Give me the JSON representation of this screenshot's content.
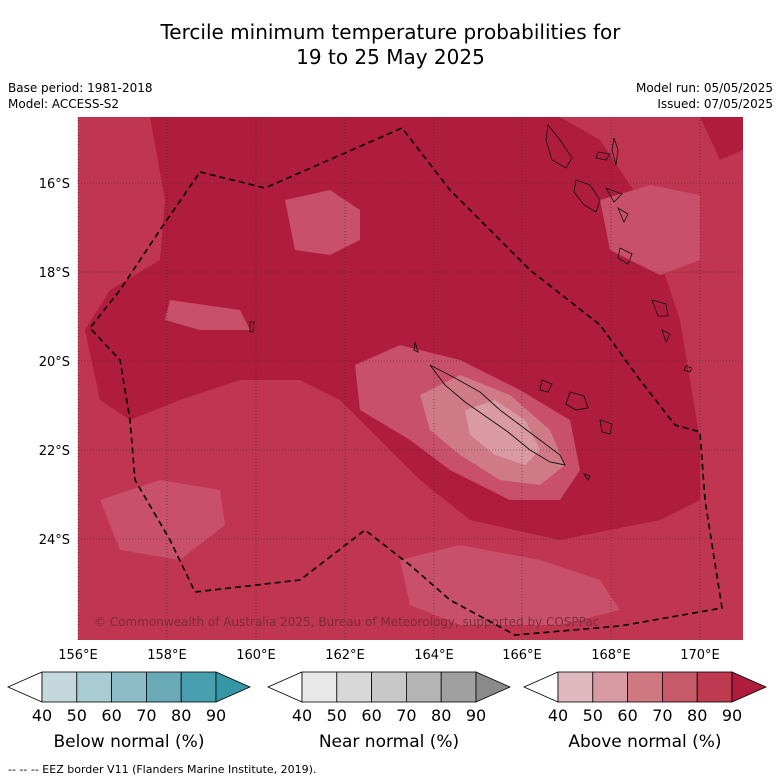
{
  "title": {
    "line1": "Tercile minimum temperature probabilities for",
    "line2": "19 to 25 May 2025"
  },
  "meta": {
    "base_period": "Base period: 1981-2018",
    "model": "Model: ACCESS-S2",
    "model_run": "Model run: 05/05/2025",
    "issued": "Issued: 07/05/2025"
  },
  "map": {
    "lat_labels": [
      "16°S",
      "18°S",
      "20°S",
      "22°S",
      "24°S"
    ],
    "lon_labels": [
      "156°E",
      "158°E",
      "160°E",
      "162°E",
      "164°E",
      "166°E",
      "168°E",
      "170°E"
    ],
    "copyright": "© Commonwealth of Australia 2025, Bureau of Meteorology, supported by COSPPac",
    "colors": {
      "above_90": "#b01c3c",
      "above_80": "#c03550",
      "above_70": "#c8506a",
      "above_60": "#d07a85",
      "above_50": "#d99aa3"
    }
  },
  "colorbars": [
    {
      "label": "Below normal (%)",
      "ticks": [
        "40",
        "50",
        "60",
        "70",
        "80",
        "90"
      ],
      "colors": [
        "#c4d8dd",
        "#a8ccd1",
        "#8cbcc6",
        "#6aaab7",
        "#48a0ae",
        "#3596a6"
      ]
    },
    {
      "label": "Near normal (%)",
      "ticks": [
        "40",
        "50",
        "60",
        "70",
        "80",
        "90"
      ],
      "colors": [
        "#e8e8e8",
        "#d8d8d8",
        "#c8c8c8",
        "#b4b4b4",
        "#a0a0a0",
        "#8a8a8a"
      ]
    },
    {
      "label": "Above normal (%)",
      "ticks": [
        "40",
        "50",
        "60",
        "70",
        "80",
        "90"
      ],
      "colors": [
        "#e0b8c0",
        "#d89aa2",
        "#cf7880",
        "#c65a68",
        "#bd3a50",
        "#b01c3c"
      ]
    }
  ],
  "footer": "-- -- -- EEZ border V11 (Flanders Marine Institute, 2019)."
}
